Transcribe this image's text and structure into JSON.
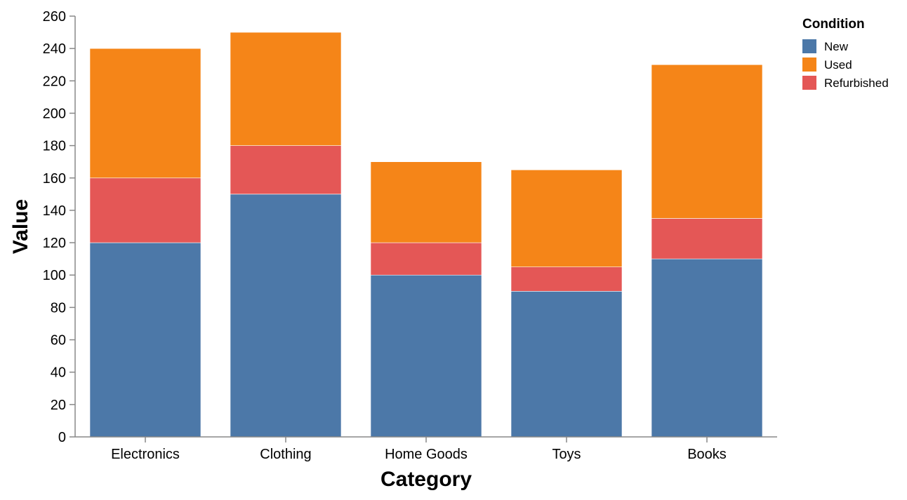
{
  "chart_data": {
    "type": "bar",
    "stacked": true,
    "title": "",
    "xlabel": "Category",
    "ylabel": "Value",
    "ylim": [
      0,
      260
    ],
    "yticks": [
      0,
      20,
      40,
      60,
      80,
      100,
      120,
      140,
      160,
      180,
      200,
      220,
      240,
      260
    ],
    "grid": false,
    "categories": [
      "Electronics",
      "Clothing",
      "Home Goods",
      "Toys",
      "Books"
    ],
    "series": [
      {
        "name": "New",
        "color": "#4c78a8",
        "values": [
          120,
          150,
          100,
          90,
          110
        ]
      },
      {
        "name": "Refurbished",
        "color": "#e45756",
        "values": [
          40,
          30,
          20,
          15,
          25
        ]
      },
      {
        "name": "Used",
        "color": "#f58518",
        "values": [
          80,
          70,
          50,
          60,
          95
        ]
      }
    ],
    "legend": {
      "title": "Condition",
      "placement": "top-right",
      "entries": [
        {
          "name": "New",
          "color": "#4c78a8"
        },
        {
          "name": "Used",
          "color": "#f58518"
        },
        {
          "name": "Refurbished",
          "color": "#e45756"
        }
      ]
    }
  }
}
